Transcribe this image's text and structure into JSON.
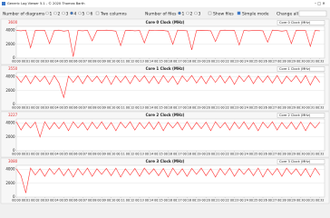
{
  "window": {
    "title": "Generic Log Viewer 5.1 - © 2020 Thomas Barth"
  },
  "toolbar": {
    "diagrams_label": "Number of diagrams",
    "diagram_options": [
      "1",
      "2",
      "3",
      "4",
      "5",
      "6"
    ],
    "two_columns": "Two columns",
    "files_label": "Number of files",
    "file_options": [
      "1",
      "2",
      "3"
    ],
    "show_files": "Show files",
    "simple_mode": "Simple mode",
    "change_all": "Change all"
  },
  "chart_data": [
    {
      "type": "line",
      "title": "Core 0 Clock (MHz)",
      "current_value": "3600",
      "selector": "Core 0 Clock (MHz)",
      "color": "#ff3333",
      "grid": true,
      "ylim": [
        0,
        4600
      ],
      "yticks": [
        0,
        2000,
        4000
      ],
      "xlim": [
        0,
        32.5
      ],
      "x": [
        0,
        0.5,
        1,
        1.5,
        2,
        2.5,
        3,
        3.5,
        4,
        4.5,
        5,
        5.5,
        6,
        6.5,
        7,
        7.5,
        8,
        8.5,
        9,
        9.5,
        10,
        10.5,
        11,
        11.5,
        12,
        12.5,
        13,
        13.5,
        14,
        14.5,
        15,
        15.5,
        16,
        16.5,
        17,
        17.5,
        18,
        18.5,
        19,
        19.5,
        20,
        20.5,
        21,
        21.5,
        22,
        22.5,
        23,
        23.5,
        24,
        24.5,
        25,
        25.5,
        26,
        26.5,
        27,
        27.5,
        28,
        28.5,
        29,
        29.5,
        30,
        30.5,
        31,
        31.5,
        32
      ],
      "values": [
        4000,
        3950,
        4050,
        1500,
        4000,
        3980,
        4020,
        2100,
        4000,
        4050,
        3900,
        4000,
        200,
        4000,
        3950,
        4020,
        2500,
        4000,
        3980,
        4050,
        4000,
        3900,
        1800,
        4000,
        4020,
        3950,
        4000,
        2200,
        4050,
        4000,
        3980,
        4000,
        3900,
        2000,
        4050,
        4000,
        3950,
        1200,
        4000,
        4020,
        4000,
        3950,
        2400,
        4000,
        4050,
        3980,
        4000,
        1900,
        4020,
        3950,
        4000,
        4000,
        3950,
        2300,
        4050,
        4000,
        3900,
        4000,
        2100,
        4020,
        4000,
        3980,
        1700,
        4000,
        3950
      ],
      "xticks": [
        {
          "value": 0,
          "label": "00:00"
        },
        {
          "value": 1,
          "label": "00:01"
        },
        {
          "value": 2,
          "label": "00:02"
        },
        {
          "value": 3,
          "label": "00:03"
        },
        {
          "value": 4,
          "label": "00:04"
        },
        {
          "value": 5,
          "label": "00:05"
        },
        {
          "value": 6,
          "label": "00:06"
        },
        {
          "value": 7,
          "label": "00:07"
        },
        {
          "value": 8,
          "label": "00:08"
        },
        {
          "value": 9,
          "label": "00:09"
        },
        {
          "value": 10,
          "label": "00:10"
        },
        {
          "value": 11,
          "label": "00:11"
        },
        {
          "value": 12,
          "label": "00:12"
        },
        {
          "value": 13,
          "label": "00:13"
        },
        {
          "value": 14,
          "label": "00:14"
        },
        {
          "value": 15,
          "label": "00:15"
        },
        {
          "value": 16,
          "label": "00:16"
        },
        {
          "value": 17,
          "label": "00:17"
        },
        {
          "value": 18,
          "label": "00:18"
        },
        {
          "value": 19,
          "label": "00:19"
        },
        {
          "value": 20,
          "label": "00:20"
        },
        {
          "value": 21,
          "label": "00:21"
        },
        {
          "value": 22,
          "label": "00:22"
        },
        {
          "value": 23,
          "label": "00:23"
        },
        {
          "value": 24,
          "label": "00:24"
        },
        {
          "value": 25,
          "label": "00:25"
        },
        {
          "value": 26,
          "label": "00:26"
        },
        {
          "value": 27,
          "label": "00:27"
        },
        {
          "value": 28,
          "label": "00:28"
        },
        {
          "value": 29,
          "label": "00:29"
        },
        {
          "value": 30,
          "label": "00:30"
        },
        {
          "value": 31,
          "label": "00:31"
        },
        {
          "value": 32,
          "label": "00:32"
        }
      ]
    },
    {
      "type": "line",
      "title": "Core 1 Clock (MHz)",
      "current_value": "3550",
      "selector": "Core 1 Clock (MHz)",
      "color": "#ff3333",
      "grid": true,
      "ylim": [
        0,
        4600
      ],
      "yticks": [
        0,
        2000,
        4000
      ],
      "xlim": [
        0,
        32.5
      ],
      "x": [
        0,
        0.5,
        1,
        1.5,
        2,
        2.5,
        3,
        3.5,
        4,
        4.5,
        5,
        5.5,
        6,
        6.5,
        7,
        7.5,
        8,
        8.5,
        9,
        9.5,
        10,
        10.5,
        11,
        11.5,
        12,
        12.5,
        13,
        13.5,
        14,
        14.5,
        15,
        15.5,
        16,
        16.5,
        17,
        17.5,
        18,
        18.5,
        19,
        19.5,
        20,
        20.5,
        21,
        21.5,
        22,
        22.5,
        23,
        23.5,
        24,
        24.5,
        25,
        25.5,
        26,
        26.5,
        27,
        27.5,
        28,
        28.5,
        29,
        29.5,
        30,
        30.5,
        31,
        31.5,
        32
      ],
      "values": [
        4100,
        3200,
        4200,
        3000,
        4150,
        3300,
        4100,
        2900,
        4200,
        3100,
        1000,
        4100,
        3200,
        4150,
        3000,
        4200,
        3300,
        4100,
        3100,
        4200,
        2900,
        4150,
        3200,
        4100,
        3000,
        4200,
        3300,
        4150,
        3100,
        4100,
        3000,
        4200,
        3200,
        4100,
        2900,
        4150,
        3300,
        4200,
        3100,
        4100,
        3000,
        4150,
        3200,
        4200,
        3100,
        4100,
        2900,
        4150,
        3300,
        4200,
        3000,
        4100,
        3200,
        4150,
        3100,
        4200,
        3000,
        4100,
        3300,
        4150,
        3100,
        4200,
        2800,
        4100,
        3200
      ],
      "xticks": [
        {
          "value": 0,
          "label": "00:00"
        },
        {
          "value": 1,
          "label": "00:01"
        },
        {
          "value": 2,
          "label": "00:02"
        },
        {
          "value": 3,
          "label": "00:03"
        },
        {
          "value": 4,
          "label": "00:04"
        },
        {
          "value": 5,
          "label": "00:05"
        },
        {
          "value": 6,
          "label": "00:06"
        },
        {
          "value": 7,
          "label": "00:07"
        },
        {
          "value": 8,
          "label": "00:08"
        },
        {
          "value": 9,
          "label": "00:09"
        },
        {
          "value": 10,
          "label": "00:10"
        },
        {
          "value": 11,
          "label": "00:11"
        },
        {
          "value": 12,
          "label": "00:12"
        },
        {
          "value": 13,
          "label": "00:13"
        },
        {
          "value": 14,
          "label": "00:14"
        },
        {
          "value": 15,
          "label": "00:15"
        },
        {
          "value": 16,
          "label": "00:16"
        },
        {
          "value": 17,
          "label": "00:17"
        },
        {
          "value": 18,
          "label": "00:18"
        },
        {
          "value": 19,
          "label": "00:19"
        },
        {
          "value": 20,
          "label": "00:20"
        },
        {
          "value": 21,
          "label": "00:21"
        },
        {
          "value": 22,
          "label": "00:22"
        },
        {
          "value": 23,
          "label": "00:23"
        },
        {
          "value": 24,
          "label": "00:24"
        },
        {
          "value": 25,
          "label": "00:25"
        },
        {
          "value": 26,
          "label": "00:26"
        },
        {
          "value": 27,
          "label": "00:27"
        },
        {
          "value": 28,
          "label": "00:28"
        },
        {
          "value": 29,
          "label": "00:29"
        },
        {
          "value": 30,
          "label": "00:30"
        },
        {
          "value": 31,
          "label": "00:31"
        },
        {
          "value": 32,
          "label": "00:32"
        }
      ]
    },
    {
      "type": "line",
      "title": "Core 2 Clock (MHz)",
      "current_value": "3227",
      "selector": "Core 2 Clock (MHz)",
      "color": "#ff3333",
      "grid": true,
      "ylim": [
        0,
        4600
      ],
      "yticks": [
        0,
        2000,
        4000
      ],
      "xlim": [
        0,
        32.5
      ],
      "x": [
        0,
        0.5,
        1,
        1.5,
        2,
        2.5,
        3,
        3.5,
        4,
        4.5,
        5,
        5.5,
        6,
        6.5,
        7,
        7.5,
        8,
        8.5,
        9,
        9.5,
        10,
        10.5,
        11,
        11.5,
        12,
        12.5,
        13,
        13.5,
        14,
        14.5,
        15,
        15.5,
        16,
        16.5,
        17,
        17.5,
        18,
        18.5,
        19,
        19.5,
        20,
        20.5,
        21,
        21.5,
        22,
        22.5,
        23,
        23.5,
        24,
        24.5,
        25,
        25.5,
        26,
        26.5,
        27,
        27.5,
        28,
        28.5,
        29,
        29.5,
        30,
        30.5,
        31,
        31.5,
        32
      ],
      "values": [
        4200,
        3000,
        4100,
        3300,
        4150,
        2000,
        4200,
        3100,
        4100,
        3200,
        4150,
        2900,
        4200,
        3300,
        4100,
        3000,
        4150,
        3200,
        4200,
        3100,
        4100,
        2900,
        4150,
        3300,
        4200,
        3000,
        4100,
        3200,
        4150,
        3100,
        4200,
        2900,
        4100,
        3300,
        4150,
        3000,
        4200,
        3100,
        4100,
        3200,
        4150,
        2900,
        4200,
        3300,
        4100,
        3000,
        4150,
        3200,
        4200,
        3100,
        4100,
        2900,
        4150,
        3300,
        4200,
        3000,
        4100,
        3200,
        4150,
        3100,
        4200,
        2900,
        4100,
        3300,
        4150
      ],
      "xticks": [
        {
          "value": 0,
          "label": "00:00"
        },
        {
          "value": 1,
          "label": "00:01"
        },
        {
          "value": 2,
          "label": "00:02"
        },
        {
          "value": 3,
          "label": "00:03"
        },
        {
          "value": 4,
          "label": "00:04"
        },
        {
          "value": 5,
          "label": "00:05"
        },
        {
          "value": 6,
          "label": "00:06"
        },
        {
          "value": 7,
          "label": "00:07"
        },
        {
          "value": 8,
          "label": "00:08"
        },
        {
          "value": 9,
          "label": "00:09"
        },
        {
          "value": 10,
          "label": "00:10"
        },
        {
          "value": 11,
          "label": "00:11"
        },
        {
          "value": 12,
          "label": "00:12"
        },
        {
          "value": 13,
          "label": "00:13"
        },
        {
          "value": 14,
          "label": "00:14"
        },
        {
          "value": 15,
          "label": "00:15"
        },
        {
          "value": 16,
          "label": "00:16"
        },
        {
          "value": 17,
          "label": "00:17"
        },
        {
          "value": 18,
          "label": "00:18"
        },
        {
          "value": 19,
          "label": "00:19"
        },
        {
          "value": 20,
          "label": "00:20"
        },
        {
          "value": 21,
          "label": "00:21"
        },
        {
          "value": 22,
          "label": "00:22"
        },
        {
          "value": 23,
          "label": "00:23"
        },
        {
          "value": 24,
          "label": "00:24"
        },
        {
          "value": 25,
          "label": "00:25"
        },
        {
          "value": 26,
          "label": "00:26"
        },
        {
          "value": 27,
          "label": "00:27"
        },
        {
          "value": 28,
          "label": "00:28"
        },
        {
          "value": 29,
          "label": "00:29"
        },
        {
          "value": 30,
          "label": "00:30"
        },
        {
          "value": 31,
          "label": "00:31"
        },
        {
          "value": 32,
          "label": "00:32"
        }
      ]
    },
    {
      "type": "line",
      "title": "Core 3 Clock (MHz)",
      "current_value": "3080",
      "selector": "Core 3 Clock (MHz)",
      "color": "#ff3333",
      "grid": true,
      "ylim": [
        0,
        4600
      ],
      "yticks": [
        0,
        2000,
        4000
      ],
      "xlim": [
        0,
        32.5
      ],
      "x": [
        0,
        0.5,
        1,
        1.5,
        2,
        2.5,
        3,
        3.5,
        4,
        4.5,
        5,
        5.5,
        6,
        6.5,
        7,
        7.5,
        8,
        8.5,
        9,
        9.5,
        10,
        10.5,
        11,
        11.5,
        12,
        12.5,
        13,
        13.5,
        14,
        14.5,
        15,
        15.5,
        16,
        16.5,
        17,
        17.5,
        18,
        18.5,
        19,
        19.5,
        20,
        20.5,
        21,
        21.5,
        22,
        22.5,
        23,
        23.5,
        24,
        24.5,
        25,
        25.5,
        26,
        26.5,
        27,
        27.5,
        28,
        28.5,
        29,
        29.5,
        30,
        30.5,
        31,
        31.5,
        32
      ],
      "values": [
        4100,
        3100,
        600,
        4200,
        3200,
        4100,
        3000,
        4150,
        3300,
        4200,
        3100,
        4100,
        2900,
        4150,
        3200,
        4200,
        3000,
        4100,
        3300,
        4150,
        3100,
        4200,
        2900,
        4100,
        3200,
        4150,
        3000,
        4200,
        3300,
        4100,
        3100,
        4150,
        2900,
        4200,
        3200,
        4100,
        3000,
        4150,
        3300,
        4200,
        3100,
        4100,
        2900,
        4150,
        3200,
        4200,
        3000,
        4100,
        3300,
        4150,
        3100,
        4200,
        2900,
        4100,
        3200,
        4150,
        3000,
        4200,
        3300,
        4100,
        3100,
        4150,
        2900,
        4200,
        3200
      ],
      "xticks": [
        {
          "value": 0,
          "label": "00:00"
        },
        {
          "value": 1,
          "label": "00:01"
        },
        {
          "value": 2,
          "label": "00:02"
        },
        {
          "value": 3,
          "label": "00:03"
        },
        {
          "value": 4,
          "label": "00:04"
        },
        {
          "value": 5,
          "label": "00:05"
        },
        {
          "value": 6,
          "label": "00:06"
        },
        {
          "value": 7,
          "label": "00:07"
        },
        {
          "value": 8,
          "label": "00:08"
        },
        {
          "value": 9,
          "label": "00:09"
        },
        {
          "value": 10,
          "label": "00:10"
        },
        {
          "value": 11,
          "label": "00:11"
        },
        {
          "value": 12,
          "label": "00:12"
        },
        {
          "value": 13,
          "label": "00:13"
        },
        {
          "value": 14,
          "label": "00:14"
        },
        {
          "value": 15,
          "label": "00:15"
        },
        {
          "value": 16,
          "label": "00:16"
        },
        {
          "value": 17,
          "label": "00:17"
        },
        {
          "value": 18,
          "label": "00:18"
        },
        {
          "value": 19,
          "label": "00:19"
        },
        {
          "value": 20,
          "label": "00:20"
        },
        {
          "value": 21,
          "label": "00:21"
        },
        {
          "value": 22,
          "label": "00:22"
        },
        {
          "value": 23,
          "label": "00:23"
        },
        {
          "value": 24,
          "label": "00:24"
        },
        {
          "value": 25,
          "label": "00:25"
        },
        {
          "value": 26,
          "label": "00:26"
        },
        {
          "value": 27,
          "label": "00:27"
        },
        {
          "value": 28,
          "label": "00:28"
        },
        {
          "value": 29,
          "label": "00:29"
        },
        {
          "value": 30,
          "label": "00:30"
        },
        {
          "value": 31,
          "label": "00:31"
        },
        {
          "value": 32,
          "label": "00:32"
        }
      ]
    }
  ]
}
